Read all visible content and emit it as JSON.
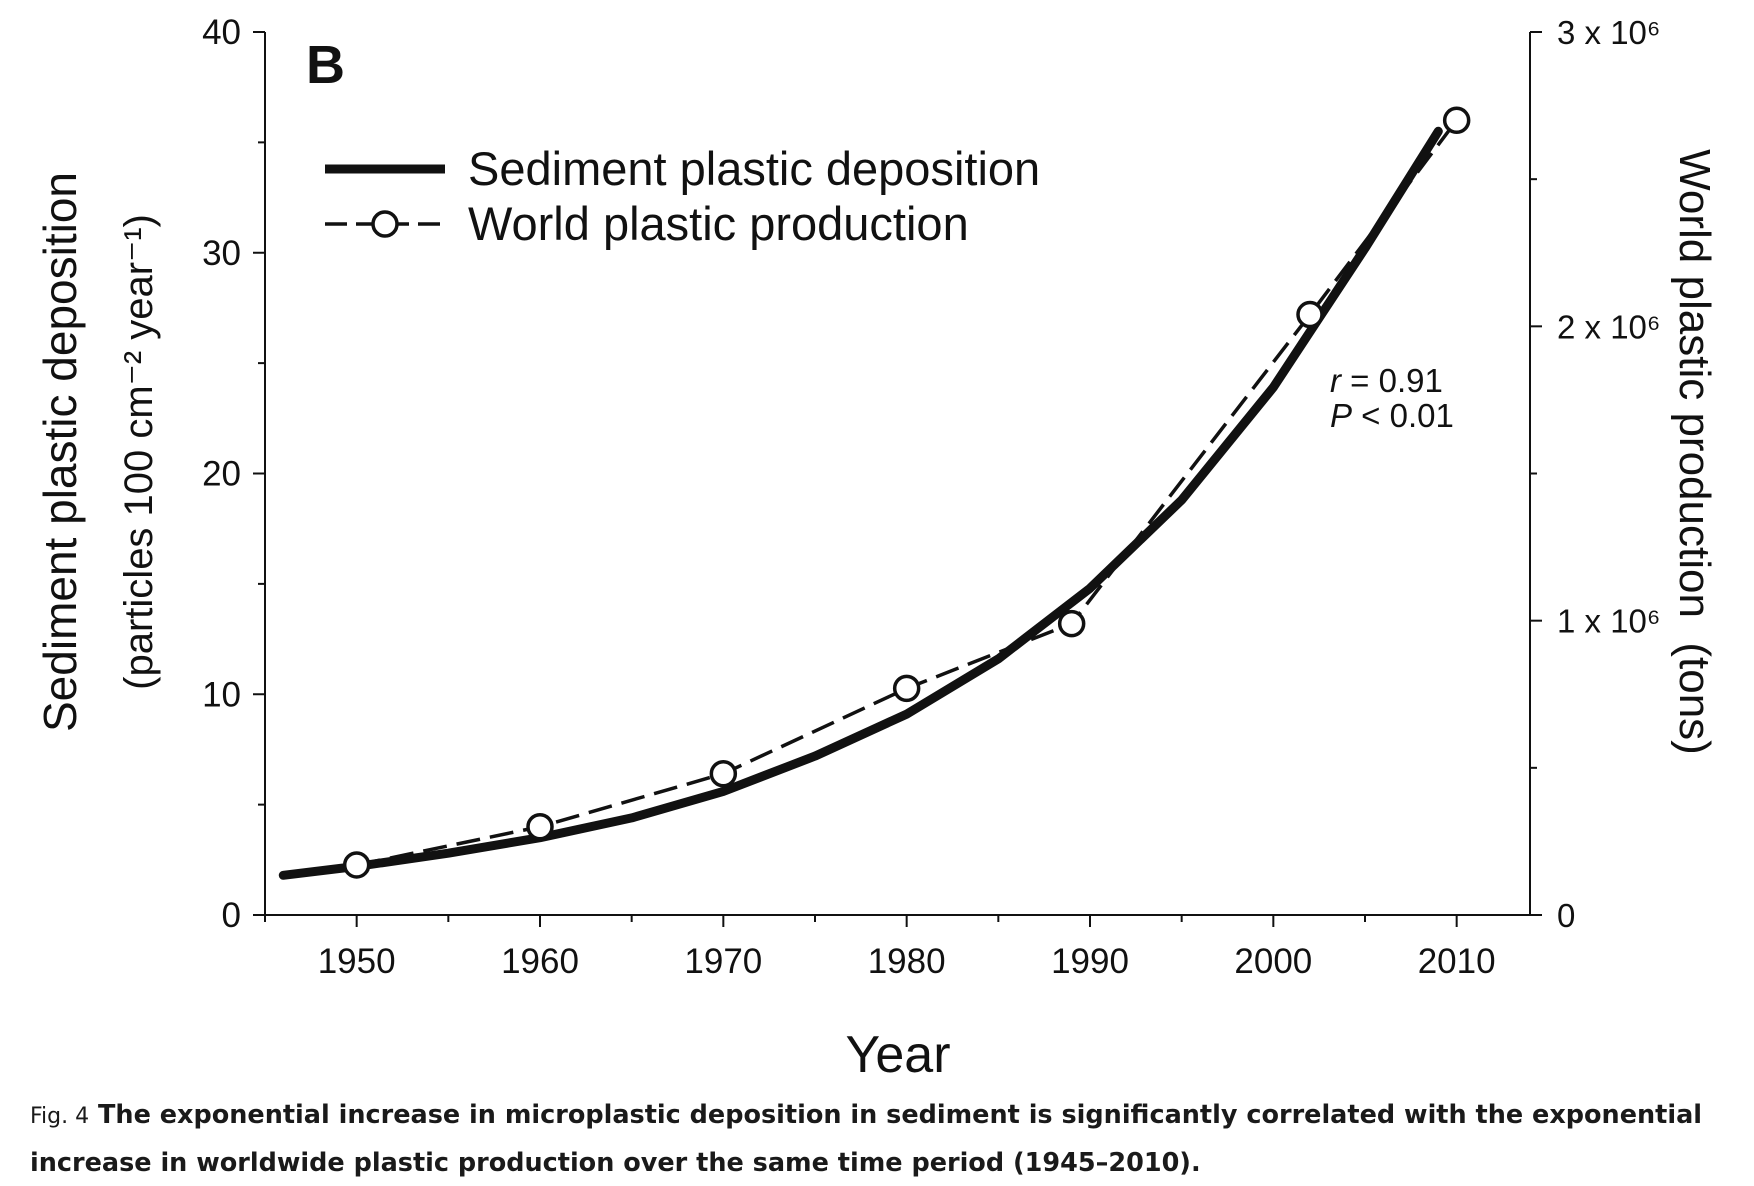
{
  "panel_label": "B",
  "caption": {
    "label": "Fig. 4",
    "text": "The exponential increase in microplastic deposition in sediment is significantly correlated with the exponential increase in worldwide plastic production over the same time period (1945–2010)."
  },
  "colors": {
    "ink": "#111111",
    "background": "#ffffff"
  },
  "chart_data": {
    "type": "line",
    "xlabel": "Year",
    "ylabel": "Sediment plastic deposition",
    "ylabel_units": "(particles 100 cm⁻² year⁻¹)",
    "y2label": "World plastic production  (tons)",
    "xlim": [
      1945,
      2014
    ],
    "ylim": [
      0,
      40
    ],
    "y2lim": [
      0,
      3000000
    ],
    "x_ticks": [
      1950,
      1960,
      1970,
      1980,
      1990,
      2000,
      2010
    ],
    "x_minor_ticks": [
      1945,
      1955,
      1965,
      1975,
      1985,
      1995,
      2005
    ],
    "y_ticks": [
      0,
      10,
      20,
      30,
      40
    ],
    "y_minor_ticks": [
      5,
      15,
      25,
      35
    ],
    "y2_ticks": [
      {
        "value": 0,
        "label": "0"
      },
      {
        "value": 1000000,
        "label": "1 x 10⁶"
      },
      {
        "value": 2000000,
        "label": "2 x 10⁶"
      },
      {
        "value": 3000000,
        "label": "3 x 10⁶"
      }
    ],
    "y2_minor_ticks": [
      500000,
      1500000,
      2500000
    ],
    "legend": {
      "placement": "top-left"
    },
    "annotation": {
      "r_label": "r",
      "r_value": " = 0.91",
      "p_label": "P",
      "p_value": " < 0.01"
    },
    "series": [
      {
        "name": "Sediment plastic deposition",
        "axis": "left",
        "style": "solid-thick",
        "x": [
          1946,
          1950,
          1955,
          1960,
          1965,
          1970,
          1975,
          1980,
          1985,
          1990,
          1995,
          2000,
          2005,
          2009
        ],
        "y": [
          1.8,
          2.2,
          2.8,
          3.5,
          4.4,
          5.6,
          7.2,
          9.1,
          11.6,
          14.8,
          18.8,
          23.9,
          30.2,
          35.5
        ]
      },
      {
        "name": "World plastic production",
        "axis": "right",
        "style": "dashed-markers",
        "x": [
          1950,
          1960,
          1970,
          1980,
          1989,
          2002,
          2010
        ],
        "y": [
          170000,
          300000,
          480000,
          770000,
          990000,
          2040000,
          2700000
        ]
      }
    ]
  }
}
